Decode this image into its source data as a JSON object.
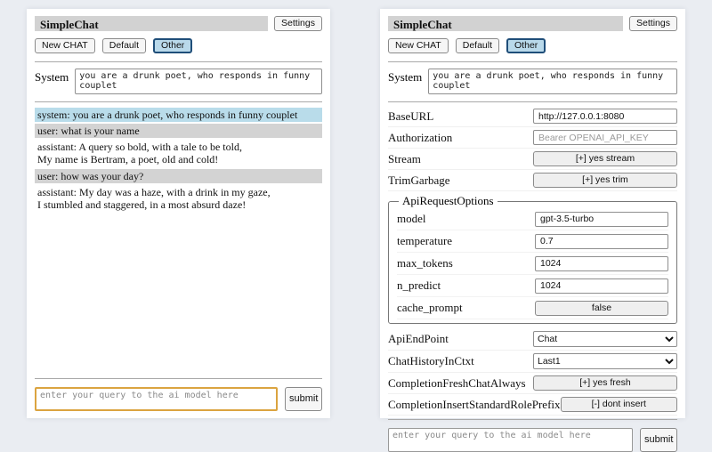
{
  "header": {
    "title": "SimpleChat",
    "settings_label": "Settings"
  },
  "toolbar": {
    "new_chat_label": "New CHAT",
    "default_label": "Default",
    "other_label": "Other"
  },
  "system_prompt": {
    "label": "System",
    "value": "you are a drunk poet, who responds in funny couplet"
  },
  "chat": {
    "messages": [
      {
        "role": "system",
        "text": "system: you are a drunk poet, who responds in funny couplet"
      },
      {
        "role": "user",
        "text": "user: what is your name"
      },
      {
        "role": "assistant",
        "text": "assistant: A query so bold, with a tale to be told,\nMy name is Bertram, a poet, old and cold!"
      },
      {
        "role": "user",
        "text": "user: how was your day?"
      },
      {
        "role": "assistant",
        "text": "assistant: My day was a haze, with a drink in my gaze,\nI stumbled and staggered, in a most absurd daze!"
      }
    ]
  },
  "query": {
    "placeholder": "enter your query to the ai model here",
    "submit_label": "submit"
  },
  "settings": {
    "base_url": {
      "label": "BaseURL",
      "value": "http://127.0.0.1:8080"
    },
    "authorization": {
      "label": "Authorization",
      "placeholder": "Bearer OPENAI_API_KEY"
    },
    "stream": {
      "label": "Stream",
      "value": "[+] yes stream"
    },
    "trim_garbage": {
      "label": "TrimGarbage",
      "value": "[+] yes trim"
    },
    "api_request_options": {
      "legend": "ApiRequestOptions",
      "model": {
        "label": "model",
        "value": "gpt-3.5-turbo"
      },
      "temperature": {
        "label": "temperature",
        "value": "0.7"
      },
      "max_tokens": {
        "label": "max_tokens",
        "value": "1024"
      },
      "n_predict": {
        "label": "n_predict",
        "value": "1024"
      },
      "cache_prompt": {
        "label": "cache_prompt",
        "value": "false"
      }
    },
    "api_endpoint": {
      "label": "ApiEndPoint",
      "value": "Chat"
    },
    "chat_history_in_ctxt": {
      "label": "ChatHistoryInCtxt",
      "value": "Last1"
    },
    "completion_fresh_chat_always": {
      "label": "CompletionFreshChatAlways",
      "value": "[+] yes fresh"
    },
    "completion_insert_standard_role_prefix": {
      "label": "CompletionInsertStandardRolePrefix",
      "value": "[-] dont insert"
    }
  },
  "colors": {
    "page_background": "#eaedf2",
    "title_bar": "#d2d2d2",
    "active_tab_background": "#b9d9ea",
    "active_tab_border": "#1f4e79",
    "system_message_background": "#b9dcea",
    "user_message_background": "#d3d3d3",
    "query_focus_border": "#dba440"
  }
}
